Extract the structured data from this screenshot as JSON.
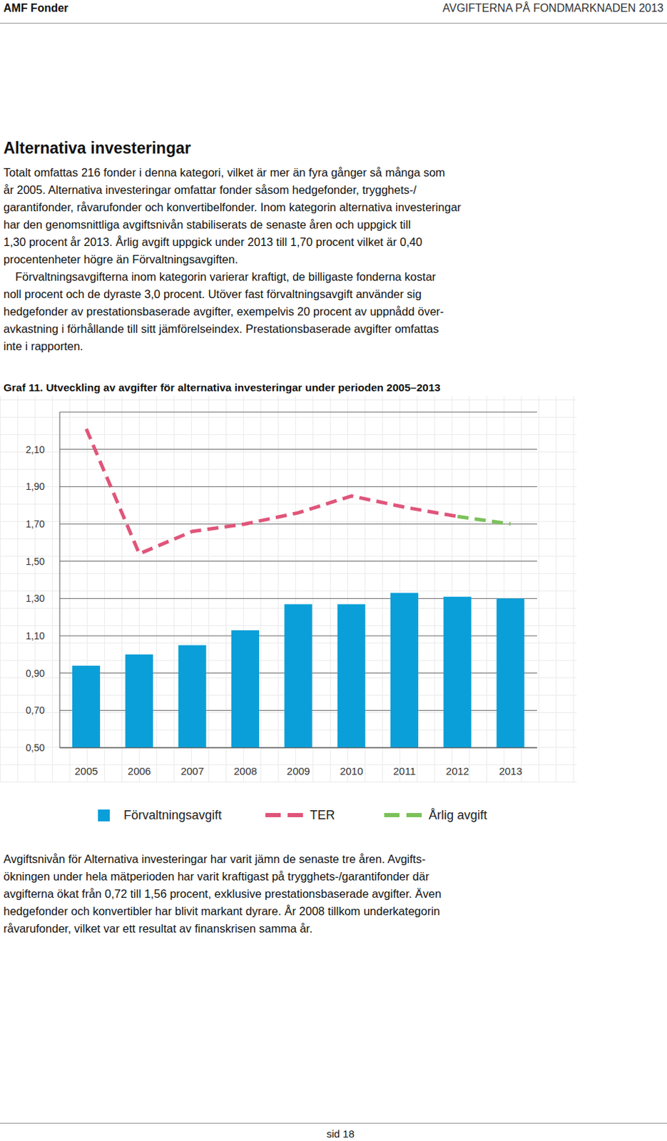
{
  "header": {
    "left": "AMF Fonder",
    "right": "AVGIFTERNA PÅ FONDMARKNADEN 2013"
  },
  "section_title": "Alternativa investeringar",
  "paragraphs": [
    [
      "Totalt omfattas 216 fonder i denna kategori, vilket är mer än fyra gånger så många som",
      "år 2005. Alternativa investeringar omfattar fonder såsom hedgefonder, trygghets-/",
      "garantifonder, råvarufonder och konvertibelfonder. Inom kategorin alternativa investeringar",
      "har den genomsnittliga avgiftsnivån stabiliserats de senaste åren och uppgick till",
      "1,30 procent år 2013. Årlig avgift uppgick under 2013 till 1,70 procent vilket är 0,40",
      "procentenheter högre än Förvaltningsavgiften."
    ],
    [
      "Förvaltningsavgifterna inom kategorin varierar kraftigt, de billigaste fonderna kostar",
      "noll procent och de dyraste 3,0 procent. Utöver fast förvaltningsavgift använder sig",
      "hedgefonder av prestationsbaserade avgifter, exempelvis 20 procent av uppnådd över-",
      "avkastning i förhållande till sitt jämförelseindex. Prestationsbaserade avgifter omfattas",
      "inte i rapporten."
    ]
  ],
  "chart_caption": "Graf 11. Utveckling av avgifter för alternativa investeringar under perioden 2005–2013",
  "chart_data": {
    "type": "bar",
    "categories": [
      "2005",
      "2006",
      "2007",
      "2008",
      "2009",
      "2010",
      "2011",
      "2012",
      "2013"
    ],
    "series": [
      {
        "name": "Förvaltningsavgift",
        "type": "bar",
        "color": "#0a9fd8",
        "values": [
          0.94,
          1.0,
          1.05,
          1.13,
          1.27,
          1.27,
          1.33,
          1.31,
          1.3
        ]
      },
      {
        "name": "TER",
        "type": "line",
        "line_style": "dashed",
        "color": "#e0557a",
        "values": [
          2.21,
          1.54,
          1.66,
          1.7,
          1.76,
          1.85,
          1.79,
          1.74,
          null
        ]
      },
      {
        "name": "Årlig avgift",
        "type": "line",
        "line_style": "dashed",
        "color": "#7cc15a",
        "values": [
          null,
          null,
          null,
          null,
          null,
          null,
          null,
          1.74,
          1.7
        ]
      }
    ],
    "ylim": [
      0.5,
      2.3
    ],
    "yticks": [
      {
        "value": 0.5,
        "label": "0,50"
      },
      {
        "value": 0.7,
        "label": "0,70"
      },
      {
        "value": 0.9,
        "label": "0,90"
      },
      {
        "value": 1.1,
        "label": "1,10"
      },
      {
        "value": 1.3,
        "label": "1,30"
      },
      {
        "value": 1.5,
        "label": "1,50"
      },
      {
        "value": 1.7,
        "label": "1,70"
      },
      {
        "value": 1.9,
        "label": "1,90"
      },
      {
        "value": 2.1,
        "label": "2,10"
      }
    ],
    "grid": true,
    "legend": "bottom"
  },
  "closing_paragraph": [
    "Avgiftsnivån för Alternativa investeringar har varit jämn de senaste tre åren. Avgifts-",
    "ökningen under hela mätperioden har varit kraftigast på trygghets-/garantifonder där",
    "avgifterna ökat från 0,72 till 1,56 procent, exklusive prestationsbaserade avgifter. Även",
    "hedgefonder och konvertibler har blivit markant dyrare. År 2008 tillkom underkategorin",
    "råvarufonder, vilket var ett resultat av finanskrisen samma år."
  ],
  "footer": "sid 18"
}
